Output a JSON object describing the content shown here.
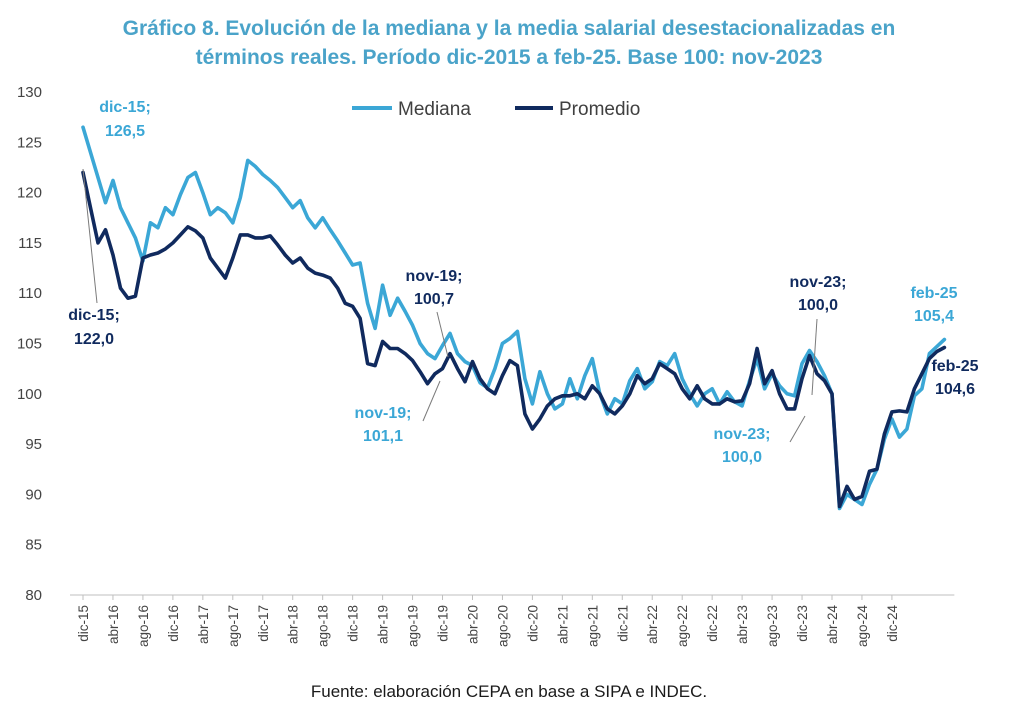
{
  "title_line1": "Gráfico 8. Evolución de la mediana y la media salarial desestacionalizadas en",
  "title_line2": "términos reales. Período dic-2015 a feb-25. Base 100: nov-2023",
  "source": "Fuente: elaboración CEPA en base a SIPA e INDEC.",
  "chart_data": {
    "type": "line",
    "ylim": [
      80,
      130
    ],
    "yticks": [
      "80",
      "85",
      "90",
      "95",
      "100",
      "105",
      "110",
      "115",
      "120",
      "125",
      "130"
    ],
    "xticks": [
      "dic-15",
      "abr-16",
      "ago-16",
      "dic-16",
      "abr-17",
      "ago-17",
      "dic-17",
      "abr-18",
      "ago-18",
      "dic-18",
      "abr-19",
      "ago-19",
      "dic-19",
      "abr-20",
      "ago-20",
      "dic-20",
      "abr-21",
      "ago-21",
      "dic-21",
      "abr-22",
      "ago-22",
      "dic-22",
      "abr-23",
      "ago-23",
      "dic-23",
      "abr-24",
      "ago-24",
      "dic-24"
    ],
    "grid": false,
    "legend_position": "top-center",
    "colors": {
      "mediana": "#3ba7d6",
      "promedio": "#102a5e"
    },
    "series": [
      {
        "name": "Mediana",
        "values": [
          126.5,
          124.0,
          121.5,
          119.0,
          121.2,
          118.5,
          117.0,
          115.5,
          113.2,
          117.0,
          116.5,
          118.5,
          117.8,
          119.8,
          121.5,
          122.0,
          120.0,
          117.8,
          118.5,
          118.0,
          117.0,
          119.5,
          123.2,
          122.6,
          121.8,
          121.2,
          120.5,
          119.5,
          118.5,
          119.2,
          117.5,
          116.5,
          117.5,
          116.3,
          115.2,
          114.0,
          112.8,
          113.0,
          109.0,
          106.5,
          110.8,
          107.8,
          109.5,
          108.2,
          106.8,
          105.0,
          104.0,
          103.5,
          104.8,
          106.0,
          104.0,
          103.2,
          102.8,
          101.1,
          100.6,
          102.5,
          105.0,
          105.5,
          106.2,
          101.5,
          99.0,
          102.2,
          100.0,
          98.5,
          99.0,
          101.5,
          99.5,
          101.8,
          103.5,
          100.0,
          98.0,
          99.5,
          99.0,
          101.3,
          102.5,
          100.5,
          101.2,
          103.2,
          102.8,
          104.0,
          101.5,
          100.0,
          98.8,
          100.0,
          100.5,
          99.0,
          100.2,
          99.2,
          98.8,
          101.3,
          103.5,
          100.5,
          102.0,
          100.8,
          100.0,
          99.8,
          103.0,
          104.3,
          103.2,
          101.8,
          100.0,
          88.6,
          90.0,
          89.5,
          89.0,
          91.0,
          92.5,
          95.5,
          97.5,
          95.7,
          96.5,
          99.8,
          100.5,
          104.0,
          104.7,
          105.4
        ]
      },
      {
        "name": "Promedio",
        "values": [
          122.0,
          118.5,
          115.0,
          116.3,
          113.8,
          110.5,
          109.5,
          109.7,
          113.5,
          113.8,
          114.0,
          114.4,
          115.0,
          115.8,
          116.6,
          116.2,
          115.5,
          113.5,
          112.5,
          111.5,
          113.5,
          115.8,
          115.8,
          115.5,
          115.5,
          115.7,
          114.8,
          113.8,
          113.0,
          113.5,
          112.5,
          112.0,
          111.8,
          111.5,
          110.5,
          109.0,
          108.7,
          107.5,
          103.0,
          102.8,
          105.2,
          104.5,
          104.5,
          104.0,
          103.3,
          102.2,
          101.0,
          102.0,
          102.5,
          104.0,
          102.5,
          101.2,
          103.2,
          101.5,
          100.5,
          100.0,
          101.8,
          103.3,
          102.8,
          98.0,
          96.5,
          97.5,
          98.8,
          99.5,
          99.8,
          99.8,
          100.0,
          99.5,
          100.8,
          100.0,
          98.5,
          98.0,
          98.8,
          100.0,
          101.8,
          101.0,
          101.5,
          103.0,
          102.5,
          102.0,
          100.5,
          99.5,
          100.8,
          99.5,
          99.0,
          99.0,
          99.5,
          99.2,
          99.3,
          101.0,
          104.5,
          101.0,
          102.3,
          100.0,
          98.5,
          98.5,
          101.5,
          103.8,
          102.0,
          101.3,
          100.0,
          88.8,
          90.8,
          89.5,
          89.8,
          92.3,
          92.5,
          96.0,
          98.2,
          98.3,
          98.2,
          100.5,
          102.0,
          103.5,
          104.2,
          104.6
        ]
      }
    ],
    "annotations": [
      {
        "text1": "dic-15;",
        "text2": "126,5",
        "series": "mediana"
      },
      {
        "text1": "dic-15;",
        "text2": "122,0",
        "series": "promedio"
      },
      {
        "text1": "nov-19;",
        "text2": "100,7",
        "series": "promedio"
      },
      {
        "text1": "nov-19;",
        "text2": "101,1",
        "series": "mediana"
      },
      {
        "text1": "nov-23;",
        "text2": "100,0",
        "series": "promedio"
      },
      {
        "text1": "nov-23;",
        "text2": "100,0",
        "series": "mediana"
      },
      {
        "text1": "feb-25",
        "text2": "105,4",
        "series": "mediana"
      },
      {
        "text1": "feb-25",
        "text2": "104,6",
        "series": "promedio"
      }
    ]
  }
}
